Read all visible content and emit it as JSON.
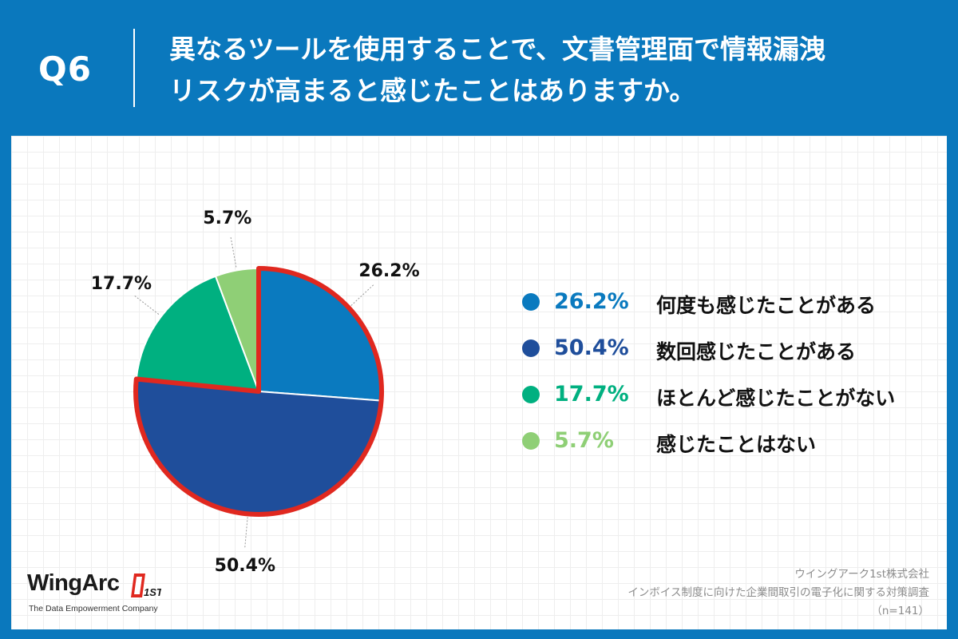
{
  "header": {
    "question_no": "Q6",
    "question_lines": [
      "異なるツールを使用することで、文書管理面で情報漏洩",
      "リスクが高まると感じたことはありますか。"
    ]
  },
  "chart_data": {
    "type": "pie",
    "start_angle_deg": 0,
    "direction": "clockwise",
    "slices": [
      {
        "label": "何度も感じたことがある",
        "value": 26.2,
        "display": "26.2%",
        "color": "#0a7abf",
        "highlighted": true
      },
      {
        "label": "数回感じたことがある",
        "value": 50.4,
        "display": "50.4%",
        "color": "#1f4e9b",
        "highlighted": true
      },
      {
        "label": "ほとんど感じたことがない",
        "value": 17.7,
        "display": "17.7%",
        "color": "#00b080",
        "highlighted": false
      },
      {
        "label": "感じたことはない",
        "value": 5.7,
        "display": "5.7%",
        "color": "#8fcf76",
        "highlighted": false
      }
    ],
    "highlight_color": "#e0281f",
    "legend_position": "right"
  },
  "logo": {
    "name": "WingArc",
    "mark": "1ST",
    "tagline": "The Data Empowerment Company"
  },
  "source": {
    "company": "ウイングアーク1st株式会社",
    "survey": "インボイス制度に向けた企業間取引の電子化に関する対策調査",
    "sample": "（n=141）"
  }
}
